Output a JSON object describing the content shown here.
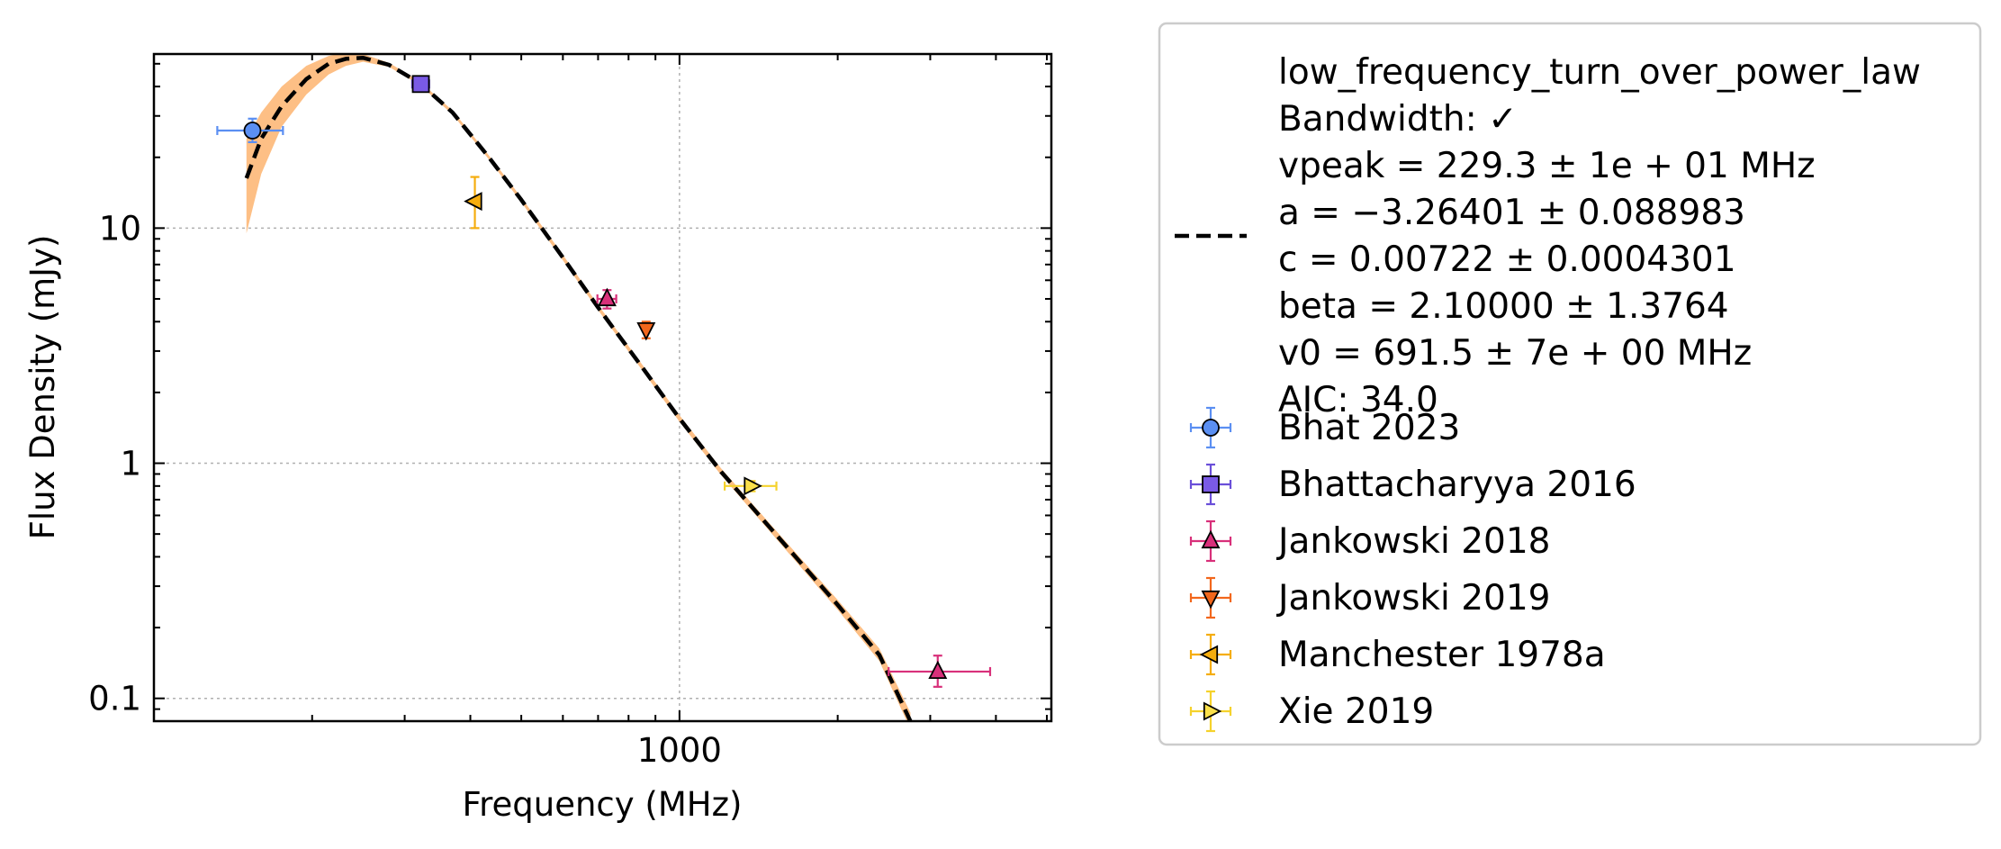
{
  "chart_data": {
    "type": "scatter",
    "x_scale": "log",
    "y_scale": "log",
    "xlabel": "Frequency (MHz)",
    "ylabel": "Flux Density (mJy)",
    "xlim": [
      100,
      5100
    ],
    "ylim": [
      0.08,
      55
    ],
    "grid": true,
    "x_ticks": [
      {
        "value": 1000,
        "label": "1000"
      }
    ],
    "y_ticks": [
      {
        "value": 0.1,
        "label": "0.1"
      },
      {
        "value": 1,
        "label": "1"
      },
      {
        "value": 10,
        "label": "10"
      }
    ],
    "legend_position": "outside-right",
    "fit": {
      "name": "low_frequency_turn_over_power_law",
      "legend_lines": [
        "low_frequency_turn_over_power_law",
        "Bandwidth: ✓",
        "vpeak = 229.3 ± 1e + 01 MHz",
        "a = −3.26401 ± 0.088983",
        "c = 0.00722 ± 0.0004301",
        "beta = 2.10000 ± 1.3764",
        "v0 = 691.5 ± 7e + 00 MHz",
        "AIC: 34.0"
      ],
      "color": "#000000",
      "band_color": "#fdbf85",
      "curve": [
        {
          "x": 150,
          "y": 16.3,
          "lo": 9.5,
          "hi": 24
        },
        {
          "x": 160,
          "y": 24,
          "lo": 17,
          "hi": 31
        },
        {
          "x": 175,
          "y": 33,
          "lo": 27,
          "hi": 40
        },
        {
          "x": 195,
          "y": 43,
          "lo": 37,
          "hi": 49
        },
        {
          "x": 215,
          "y": 50,
          "lo": 45,
          "hi": 54
        },
        {
          "x": 232,
          "y": 52.5,
          "lo": 49,
          "hi": 56
        },
        {
          "x": 250,
          "y": 53,
          "lo": 51,
          "hi": 55
        },
        {
          "x": 280,
          "y": 49.5,
          "lo": 48.5,
          "hi": 50.5
        },
        {
          "x": 320,
          "y": 41.5,
          "lo": 40.8,
          "hi": 42.2
        },
        {
          "x": 370,
          "y": 31,
          "lo": 30.4,
          "hi": 31.6
        },
        {
          "x": 430,
          "y": 20.5,
          "lo": 20.1,
          "hi": 20.9
        },
        {
          "x": 500,
          "y": 13.2,
          "lo": 12.9,
          "hi": 13.5
        },
        {
          "x": 600,
          "y": 7.5,
          "lo": 7.3,
          "hi": 7.7
        },
        {
          "x": 700,
          "y": 4.6,
          "lo": 4.48,
          "hi": 4.72
        },
        {
          "x": 850,
          "y": 2.55,
          "lo": 2.48,
          "hi": 2.62
        },
        {
          "x": 1000,
          "y": 1.55,
          "lo": 1.5,
          "hi": 1.6
        },
        {
          "x": 1200,
          "y": 0.92,
          "lo": 0.89,
          "hi": 0.95
        },
        {
          "x": 1500,
          "y": 0.52,
          "lo": 0.5,
          "hi": 0.54
        },
        {
          "x": 2000,
          "y": 0.25,
          "lo": 0.238,
          "hi": 0.262
        },
        {
          "x": 2400,
          "y": 0.153,
          "lo": 0.144,
          "hi": 0.163
        },
        {
          "x": 2750,
          "y": 0.08,
          "lo": 0.074,
          "hi": 0.087
        }
      ]
    },
    "series": [
      {
        "name": "Bhat 2023",
        "marker": "circle",
        "color": "#5b8ff2",
        "edge": "#5b8ff2",
        "points": [
          {
            "x": 154,
            "y": 26.0,
            "xerr": [
              22,
              22
            ],
            "yerr": [
              2.8,
              3.2
            ]
          }
        ]
      },
      {
        "name": "Bhattacharyya 2016",
        "marker": "square",
        "color": "#7a5ae6",
        "edge": "#6a4fd9",
        "points": [
          {
            "x": 322,
            "y": 41.0,
            "xerr": [
              12,
              12
            ],
            "yerr": [
              1.5,
              1.5
            ]
          }
        ]
      },
      {
        "name": "Jankowski 2018",
        "marker": "triangle-up",
        "color": "#d8307a",
        "edge": "#d8307a",
        "points": [
          {
            "x": 728,
            "y": 5.0,
            "xerr": [
              30,
              30
            ],
            "yerr": [
              0.45,
              0.45
            ]
          }
        ]
      },
      {
        "name": "Jankowski 2019",
        "marker": "triangle-down",
        "color": "#f2671c",
        "edge": "#f2671c",
        "points": [
          {
            "x": 864,
            "y": 3.7,
            "xerr": [
              0,
              0
            ],
            "yerr": [
              0.3,
              0.3
            ]
          }
        ]
      },
      {
        "name": "Manchester 1978a",
        "marker": "triangle-left",
        "color": "#f5ad0e",
        "edge": "#f5ad0e",
        "points": [
          {
            "x": 408,
            "y": 13.0,
            "xerr": [
              0,
              0
            ],
            "yerr": [
              3.0,
              3.5
            ]
          }
        ]
      },
      {
        "name": "Xie 2019",
        "marker": "triangle-right",
        "color": "#fae04a",
        "edge": "#f5d22c",
        "points": [
          {
            "x": 1369,
            "y": 0.8,
            "xerr": [
              150,
              160
            ],
            "yerr": [
              0.04,
              0.04
            ]
          }
        ]
      },
      {
        "name": "Jankowski 2018",
        "marker": "triangle-up",
        "color": "#d8307a",
        "edge": "#d8307a",
        "legend": false,
        "points": [
          {
            "x": 3100,
            "y": 0.13,
            "xerr": [
              600,
              800
            ],
            "yerr": [
              0.018,
              0.022
            ]
          }
        ]
      }
    ]
  }
}
